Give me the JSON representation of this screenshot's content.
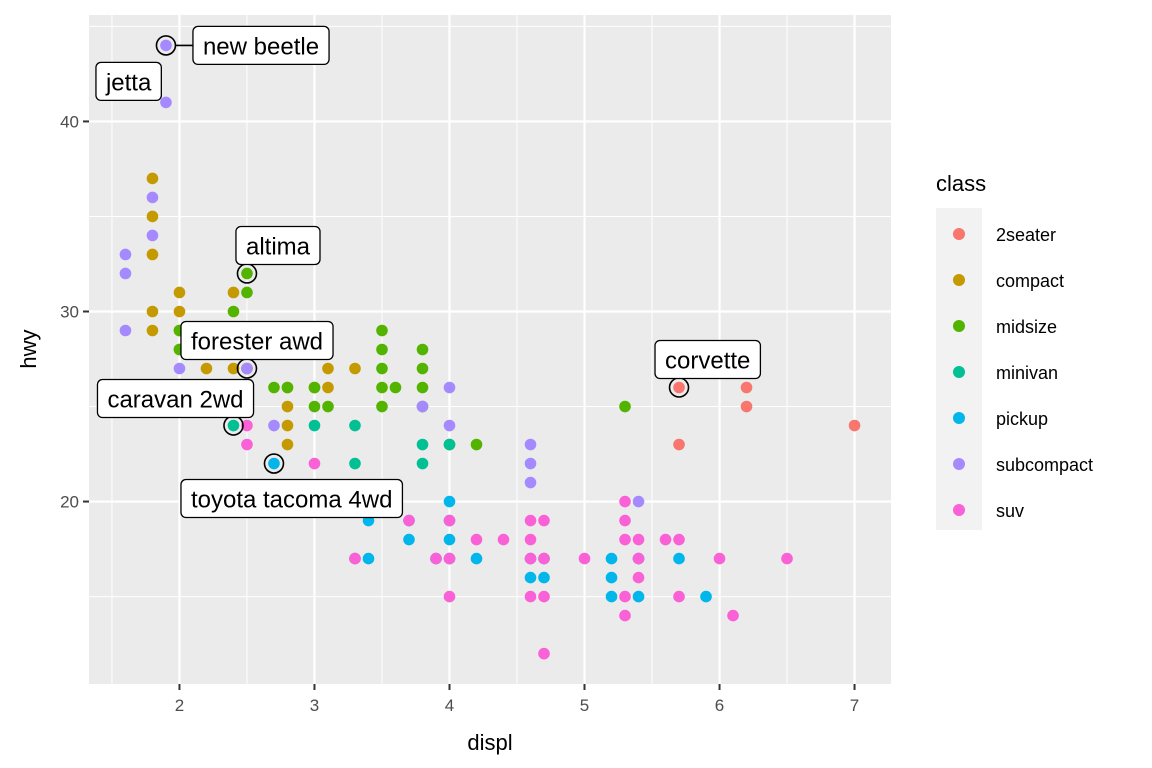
{
  "chart_data": {
    "type": "scatter",
    "xlabel": "displ",
    "ylabel": "hwy",
    "xlim": [
      1.33,
      7.27
    ],
    "ylim": [
      10.4,
      45.6
    ],
    "x_ticks": [
      2,
      3,
      4,
      5,
      6,
      7
    ],
    "y_ticks": [
      20,
      30,
      40
    ],
    "grid": true,
    "legend": {
      "title": "class",
      "position": "right",
      "entries": [
        {
          "name": "2seater",
          "color": "#F8766D"
        },
        {
          "name": "compact",
          "color": "#C49A00"
        },
        {
          "name": "midsize",
          "color": "#53B400"
        },
        {
          "name": "minivan",
          "color": "#00C094"
        },
        {
          "name": "pickup",
          "color": "#00B6EB"
        },
        {
          "name": "subcompact",
          "color": "#A58AFF"
        },
        {
          "name": "suv",
          "color": "#FB61D7"
        }
      ]
    },
    "series": [
      {
        "name": "2seater",
        "points": [
          [
            5.7,
            26
          ],
          [
            5.7,
            23
          ],
          [
            6.2,
            26
          ],
          [
            6.2,
            25
          ],
          [
            7.0,
            24
          ]
        ]
      },
      {
        "name": "compact",
        "points": [
          [
            1.8,
            37
          ],
          [
            1.8,
            35
          ],
          [
            1.8,
            33
          ],
          [
            1.8,
            30
          ],
          [
            1.8,
            29
          ],
          [
            2.0,
            31
          ],
          [
            2.0,
            30
          ],
          [
            2.0,
            29
          ],
          [
            2.0,
            28
          ],
          [
            2.2,
            27
          ],
          [
            2.4,
            31
          ],
          [
            2.4,
            27
          ],
          [
            2.5,
            27
          ],
          [
            2.5,
            26
          ],
          [
            2.5,
            27
          ],
          [
            2.8,
            26
          ],
          [
            2.8,
            25
          ],
          [
            2.8,
            23
          ],
          [
            3.0,
            26
          ],
          [
            3.1,
            26
          ],
          [
            3.1,
            27
          ],
          [
            3.3,
            27
          ],
          [
            2.8,
            24
          ]
        ]
      },
      {
        "name": "midsize",
        "points": [
          [
            2.4,
            30
          ],
          [
            2.5,
            32
          ],
          [
            2.5,
            31
          ],
          [
            2.0,
            29
          ],
          [
            2.0,
            28
          ],
          [
            3.0,
            25
          ],
          [
            3.1,
            25
          ],
          [
            3.5,
            29
          ],
          [
            3.5,
            28
          ],
          [
            3.5,
            27
          ],
          [
            3.5,
            26
          ],
          [
            3.5,
            25
          ],
          [
            3.6,
            26
          ],
          [
            3.8,
            28
          ],
          [
            3.8,
            27
          ],
          [
            3.8,
            26
          ],
          [
            3.8,
            25
          ],
          [
            4.0,
            23
          ],
          [
            4.2,
            23
          ],
          [
            5.3,
            25
          ],
          [
            2.7,
            26
          ],
          [
            2.8,
            26
          ],
          [
            3.0,
            26
          ]
        ]
      },
      {
        "name": "minivan",
        "points": [
          [
            2.4,
            24
          ],
          [
            3.0,
            24
          ],
          [
            3.3,
            24
          ],
          [
            3.3,
            22
          ],
          [
            3.3,
            17
          ],
          [
            3.8,
            23
          ],
          [
            3.8,
            22
          ],
          [
            4.0,
            23
          ]
        ]
      },
      {
        "name": "pickup",
        "points": [
          [
            2.7,
            22
          ],
          [
            3.4,
            19
          ],
          [
            3.4,
            17
          ],
          [
            3.7,
            19
          ],
          [
            3.7,
            18
          ],
          [
            3.9,
            17
          ],
          [
            4.0,
            20
          ],
          [
            4.0,
            19
          ],
          [
            4.0,
            18
          ],
          [
            4.0,
            17
          ],
          [
            4.2,
            17
          ],
          [
            4.6,
            17
          ],
          [
            4.6,
            16
          ],
          [
            4.7,
            17
          ],
          [
            4.7,
            16
          ],
          [
            5.2,
            17
          ],
          [
            5.2,
            16
          ],
          [
            5.2,
            15
          ],
          [
            5.4,
            17
          ],
          [
            5.4,
            15
          ],
          [
            5.7,
            17
          ],
          [
            5.9,
            15
          ]
        ]
      },
      {
        "name": "subcompact",
        "points": [
          [
            1.6,
            33
          ],
          [
            1.6,
            32
          ],
          [
            1.6,
            29
          ],
          [
            1.8,
            36
          ],
          [
            1.8,
            34
          ],
          [
            1.9,
            44
          ],
          [
            1.9,
            41
          ],
          [
            2.0,
            27
          ],
          [
            2.5,
            27
          ],
          [
            2.7,
            24
          ],
          [
            3.8,
            25
          ],
          [
            4.0,
            26
          ],
          [
            4.0,
            24
          ],
          [
            4.6,
            23
          ],
          [
            4.6,
            22
          ],
          [
            4.6,
            21
          ],
          [
            5.4,
            20
          ],
          [
            5.4,
            17
          ]
        ]
      },
      {
        "name": "suv",
        "points": [
          [
            2.5,
            24
          ],
          [
            2.5,
            23
          ],
          [
            3.0,
            22
          ],
          [
            3.3,
            17
          ],
          [
            3.7,
            19
          ],
          [
            3.9,
            17
          ],
          [
            4.0,
            19
          ],
          [
            4.0,
            17
          ],
          [
            4.0,
            15
          ],
          [
            4.2,
            18
          ],
          [
            4.4,
            18
          ],
          [
            4.6,
            19
          ],
          [
            4.6,
            18
          ],
          [
            4.6,
            17
          ],
          [
            4.6,
            15
          ],
          [
            4.7,
            19
          ],
          [
            4.7,
            17
          ],
          [
            4.7,
            15
          ],
          [
            4.7,
            12
          ],
          [
            5.0,
            17
          ],
          [
            5.3,
            20
          ],
          [
            5.3,
            19
          ],
          [
            5.3,
            18
          ],
          [
            5.3,
            15
          ],
          [
            5.3,
            14
          ],
          [
            5.4,
            18
          ],
          [
            5.4,
            17
          ],
          [
            5.4,
            16
          ],
          [
            5.6,
            18
          ],
          [
            5.7,
            18
          ],
          [
            5.7,
            15
          ],
          [
            6.0,
            17
          ],
          [
            6.1,
            14
          ],
          [
            6.5,
            17
          ]
        ]
      }
    ],
    "annotations": [
      {
        "label": "new beetle",
        "x": 1.9,
        "y": 44,
        "position": "right",
        "leader": true
      },
      {
        "label": "jetta",
        "x": 1.9,
        "y": 44,
        "position": "below-left",
        "leader": false
      },
      {
        "label": "altima",
        "x": 2.5,
        "y": 32,
        "position": "above",
        "leader": false
      },
      {
        "label": "forester awd",
        "x": 2.5,
        "y": 27,
        "position": "above-left",
        "leader": false
      },
      {
        "label": "caravan 2wd",
        "x": 2.4,
        "y": 24,
        "position": "above-left",
        "leader": false
      },
      {
        "label": "toyota tacoma 4wd",
        "x": 2.7,
        "y": 22,
        "position": "below",
        "leader": false
      },
      {
        "label": "corvette",
        "x": 5.7,
        "y": 26,
        "position": "above",
        "leader": false
      }
    ]
  }
}
